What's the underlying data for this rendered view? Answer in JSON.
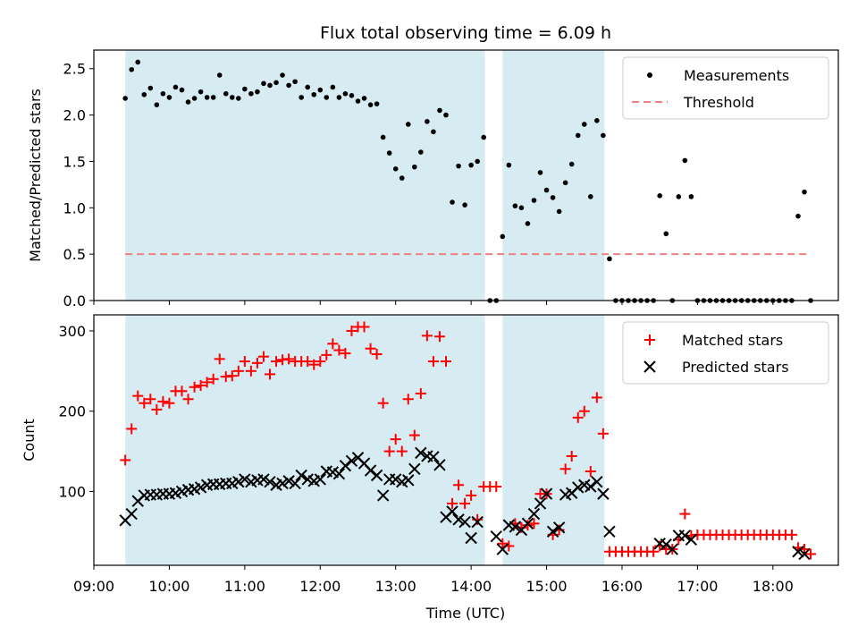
{
  "chart_data": [
    {
      "type": "scatter",
      "title": "Flux total observing time = 6.09 h",
      "xlabel": "",
      "ylabel": "Matched/Predicted stars",
      "xlim": [
        "09:00",
        "18:52"
      ],
      "ylim": [
        0,
        2.7
      ],
      "yticks": [
        0.0,
        0.5,
        1.0,
        1.5,
        2.0,
        2.5
      ],
      "ytick_labels": [
        "0.0",
        "0.5",
        "1.0",
        "1.5",
        "2.0",
        "2.5"
      ],
      "legend_position": "top-right",
      "grid": false,
      "shaded_intervals": [
        [
          "09:25",
          "14:11"
        ],
        [
          "14:25",
          "15:46"
        ]
      ],
      "threshold": 0.5,
      "threshold_range": [
        "09:25",
        "18:28"
      ],
      "series": [
        {
          "name": "Measurements",
          "color": "#000000",
          "marker": "dot",
          "points": [
            [
              "09:25",
              2.18
            ],
            [
              "09:30",
              2.49
            ],
            [
              "09:35",
              2.57
            ],
            [
              "09:40",
              2.22
            ],
            [
              "09:45",
              2.29
            ],
            [
              "09:50",
              2.11
            ],
            [
              "09:55",
              2.23
            ],
            [
              "10:00",
              2.19
            ],
            [
              "10:05",
              2.3
            ],
            [
              "10:10",
              2.27
            ],
            [
              "10:15",
              2.14
            ],
            [
              "10:20",
              2.18
            ],
            [
              "10:25",
              2.25
            ],
            [
              "10:30",
              2.19
            ],
            [
              "10:35",
              2.19
            ],
            [
              "10:40",
              2.43
            ],
            [
              "10:45",
              2.23
            ],
            [
              "10:50",
              2.19
            ],
            [
              "10:55",
              2.18
            ],
            [
              "11:00",
              2.28
            ],
            [
              "11:05",
              2.23
            ],
            [
              "11:10",
              2.25
            ],
            [
              "11:15",
              2.34
            ],
            [
              "11:20",
              2.32
            ],
            [
              "11:25",
              2.35
            ],
            [
              "11:30",
              2.43
            ],
            [
              "11:35",
              2.32
            ],
            [
              "11:40",
              2.36
            ],
            [
              "11:45",
              2.19
            ],
            [
              "11:50",
              2.3
            ],
            [
              "11:55",
              2.22
            ],
            [
              "12:00",
              2.27
            ],
            [
              "12:05",
              2.19
            ],
            [
              "12:10",
              2.3
            ],
            [
              "12:15",
              2.19
            ],
            [
              "12:20",
              2.23
            ],
            [
              "12:25",
              2.21
            ],
            [
              "12:30",
              2.15
            ],
            [
              "12:35",
              2.18
            ],
            [
              "12:40",
              2.11
            ],
            [
              "12:45",
              2.12
            ],
            [
              "12:50",
              1.76
            ],
            [
              "12:55",
              1.59
            ],
            [
              "13:00",
              1.42
            ],
            [
              "13:05",
              1.32
            ],
            [
              "13:10",
              1.9
            ],
            [
              "13:15",
              1.44
            ],
            [
              "13:20",
              1.6
            ],
            [
              "13:25",
              1.93
            ],
            [
              "13:30",
              1.82
            ],
            [
              "13:35",
              2.05
            ],
            [
              "13:40",
              2.0
            ],
            [
              "13:45",
              1.06
            ],
            [
              "13:50",
              1.45
            ],
            [
              "13:55",
              1.03
            ],
            [
              "14:00",
              1.46
            ],
            [
              "14:05",
              1.5
            ],
            [
              "14:10",
              1.76
            ],
            [
              "14:15",
              0
            ],
            [
              "14:20",
              0
            ],
            [
              "14:25",
              0.69
            ],
            [
              "14:30",
              1.46
            ],
            [
              "14:35",
              1.02
            ],
            [
              "14:40",
              1.0
            ],
            [
              "14:45",
              0.83
            ],
            [
              "14:50",
              1.08
            ],
            [
              "14:55",
              1.38
            ],
            [
              "15:00",
              1.19
            ],
            [
              "15:05",
              1.11
            ],
            [
              "15:10",
              0.96
            ],
            [
              "15:15",
              1.27
            ],
            [
              "15:20",
              1.47
            ],
            [
              "15:25",
              1.78
            ],
            [
              "15:30",
              1.9
            ],
            [
              "15:35",
              1.12
            ],
            [
              "15:40",
              1.94
            ],
            [
              "15:45",
              1.78
            ],
            [
              "15:50",
              0.45
            ],
            [
              "15:55",
              0
            ],
            [
              "16:00",
              0
            ],
            [
              "16:05",
              0
            ],
            [
              "16:10",
              0
            ],
            [
              "16:15",
              0
            ],
            [
              "16:20",
              0
            ],
            [
              "16:25",
              0
            ],
            [
              "16:30",
              1.13
            ],
            [
              "16:35",
              0.72
            ],
            [
              "16:40",
              0
            ],
            [
              "16:45",
              1.12
            ],
            [
              "16:50",
              1.51
            ],
            [
              "16:55",
              1.12
            ],
            [
              "17:00",
              0
            ],
            [
              "17:05",
              0
            ],
            [
              "17:10",
              0
            ],
            [
              "17:15",
              0
            ],
            [
              "17:20",
              0
            ],
            [
              "17:25",
              0
            ],
            [
              "17:30",
              0
            ],
            [
              "17:35",
              0
            ],
            [
              "17:40",
              0
            ],
            [
              "17:45",
              0
            ],
            [
              "17:50",
              0
            ],
            [
              "17:55",
              0
            ],
            [
              "18:00",
              0
            ],
            [
              "18:05",
              0
            ],
            [
              "18:10",
              0
            ],
            [
              "18:15",
              0
            ],
            [
              "18:20",
              0.91
            ],
            [
              "18:25",
              1.17
            ],
            [
              "18:30",
              0
            ]
          ]
        },
        {
          "name": "Threshold",
          "color": "#f08080",
          "marker": "dashed-line"
        }
      ]
    },
    {
      "type": "scatter",
      "title": "",
      "xlabel": "Time (UTC)",
      "ylabel": "Count",
      "xlim": [
        "09:00",
        "18:52"
      ],
      "ylim": [
        8,
        320
      ],
      "yticks": [
        100,
        200,
        300
      ],
      "ytick_labels": [
        "100",
        "200",
        "300"
      ],
      "xticks": [
        "09:00",
        "10:00",
        "11:00",
        "12:00",
        "13:00",
        "14:00",
        "15:00",
        "16:00",
        "17:00",
        "18:00"
      ],
      "legend_position": "top-right",
      "grid": false,
      "shaded_intervals": [
        [
          "09:25",
          "14:11"
        ],
        [
          "14:25",
          "15:46"
        ]
      ],
      "x": [
        "09:25",
        "09:30",
        "09:35",
        "09:40",
        "09:45",
        "09:50",
        "09:55",
        "10:00",
        "10:05",
        "10:10",
        "10:15",
        "10:20",
        "10:25",
        "10:30",
        "10:35",
        "10:40",
        "10:45",
        "10:50",
        "10:55",
        "11:00",
        "11:05",
        "11:10",
        "11:15",
        "11:20",
        "11:25",
        "11:30",
        "11:35",
        "11:40",
        "11:45",
        "11:50",
        "11:55",
        "12:00",
        "12:05",
        "12:10",
        "12:15",
        "12:20",
        "12:25",
        "12:30",
        "12:35",
        "12:40",
        "12:45",
        "12:50",
        "12:55",
        "13:00",
        "13:05",
        "13:10",
        "13:15",
        "13:20",
        "13:25",
        "13:30",
        "13:35",
        "13:40",
        "13:45",
        "13:50",
        "13:55",
        "14:00",
        "14:05",
        "14:10",
        "14:15",
        "14:20",
        "14:25",
        "14:30",
        "14:35",
        "14:40",
        "14:45",
        "14:50",
        "14:55",
        "15:00",
        "15:05",
        "15:10",
        "15:15",
        "15:20",
        "15:25",
        "15:30",
        "15:35",
        "15:40",
        "15:45",
        "15:50",
        "15:55",
        "16:00",
        "16:05",
        "16:10",
        "16:15",
        "16:20",
        "16:25",
        "16:30",
        "16:35",
        "16:40",
        "16:45",
        "16:50",
        "16:55",
        "17:00",
        "17:05",
        "17:10",
        "17:15",
        "17:20",
        "17:25",
        "17:30",
        "17:35",
        "17:40",
        "17:45",
        "17:50",
        "17:55",
        "18:00",
        "18:05",
        "18:10",
        "18:15",
        "18:20",
        "18:25",
        "18:30"
      ],
      "series": [
        {
          "name": "Matched stars",
          "color": "#ff0000",
          "marker": "plus",
          "values": [
            139,
            178,
            219,
            210,
            215,
            202,
            212,
            210,
            225,
            225,
            215,
            230,
            232,
            236,
            240,
            265,
            243,
            244,
            250,
            262,
            250,
            260,
            268,
            246,
            262,
            264,
            265,
            262,
            262,
            262,
            258,
            262,
            270,
            284,
            276,
            272,
            300,
            305,
            305,
            278,
            271,
            210,
            150,
            165,
            150,
            215,
            170,
            222,
            294,
            262,
            293,
            262,
            85,
            108,
            85,
            95,
            65,
            106,
            106,
            106,
            35,
            32,
            60,
            55,
            58,
            60,
            97,
            97,
            46,
            52,
            128,
            144,
            192,
            200,
            125,
            217,
            172,
            25,
            25,
            25,
            25,
            25,
            25,
            25,
            25,
            32,
            28,
            28,
            40,
            72,
            45,
            46,
            46,
            46,
            46,
            46,
            46,
            46,
            46,
            46,
            46,
            46,
            46,
            46,
            46,
            46,
            46,
            30,
            28,
            22
          ]
        },
        {
          "name": "Predicted stars",
          "color": "#000000",
          "marker": "x",
          "values": [
            64,
            72,
            88,
            95,
            96,
            96,
            97,
            97,
            98,
            100,
            102,
            103,
            105,
            108,
            109,
            109,
            110,
            110,
            112,
            115,
            112,
            114,
            115,
            112,
            108,
            110,
            113,
            110,
            120,
            115,
            113,
            115,
            125,
            124,
            122,
            132,
            138,
            142,
            135,
            126,
            120,
            95,
            115,
            115,
            112,
            114,
            128,
            148,
            144,
            143,
            133,
            68,
            75,
            65,
            62,
            42,
            62,
            null,
            null,
            44,
            28,
            58,
            56,
            52,
            60,
            72,
            85,
            97,
            50,
            55,
            96,
            98,
            105,
            108,
            106,
            112,
            97,
            50,
            null,
            null,
            null,
            null,
            null,
            null,
            null,
            35,
            34,
            28,
            45,
            45,
            40,
            null,
            null,
            null,
            null,
            null,
            null,
            null,
            null,
            null,
            null,
            null,
            null,
            null,
            null,
            null,
            null,
            25,
            22,
            null
          ]
        }
      ]
    }
  ]
}
